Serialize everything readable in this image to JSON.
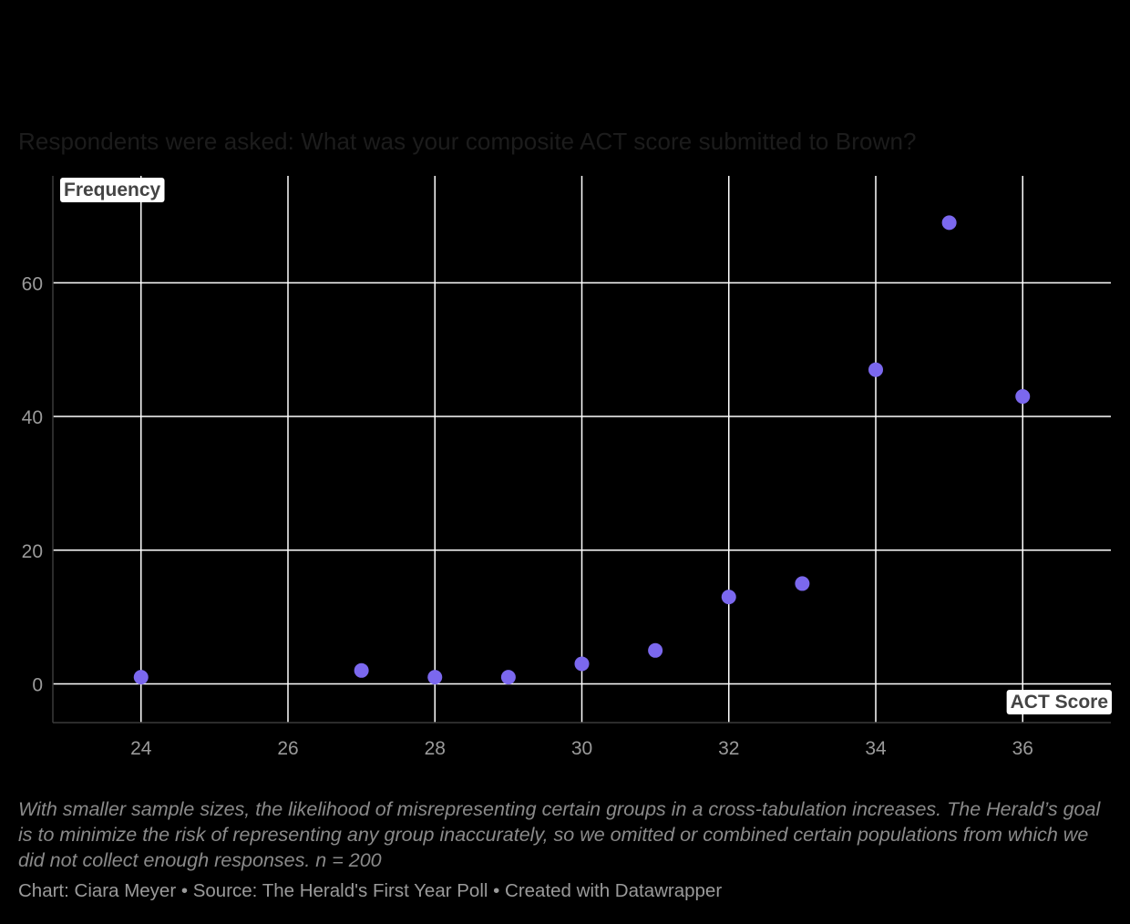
{
  "chart_data": {
    "type": "scatter",
    "subtitle": "Respondents were asked: What was your composite ACT score submitted to Brown?",
    "ylabel": "Frequency",
    "xlabel": "ACT Score",
    "xlim": [
      22.8,
      37.2
    ],
    "ylim": [
      -5.8,
      76
    ],
    "x_ticks": [
      24,
      26,
      28,
      30,
      32,
      34,
      36
    ],
    "y_ticks": [
      0,
      20,
      40,
      60
    ],
    "grid": true,
    "points": [
      {
        "x": 24,
        "y": 1
      },
      {
        "x": 27,
        "y": 2
      },
      {
        "x": 28,
        "y": 1
      },
      {
        "x": 29,
        "y": 1
      },
      {
        "x": 30,
        "y": 3
      },
      {
        "x": 31,
        "y": 5
      },
      {
        "x": 32,
        "y": 13
      },
      {
        "x": 33,
        "y": 15
      },
      {
        "x": 34,
        "y": 47
      },
      {
        "x": 35,
        "y": 69
      },
      {
        "x": 36,
        "y": 43
      }
    ],
    "point_color": "#7b68ee",
    "notes": "With smaller sample sizes, the likelihood of misrepresenting certain groups in a cross-tabulation increases. The Herald’s goal is to minimize the risk of representing any group inaccurately, so we omitted or combined certain populations from which we did not collect enough responses. n = 200",
    "credit": "Chart: Ciara Meyer • Source: The Herald's First Year Poll • Created with Datawrapper"
  }
}
